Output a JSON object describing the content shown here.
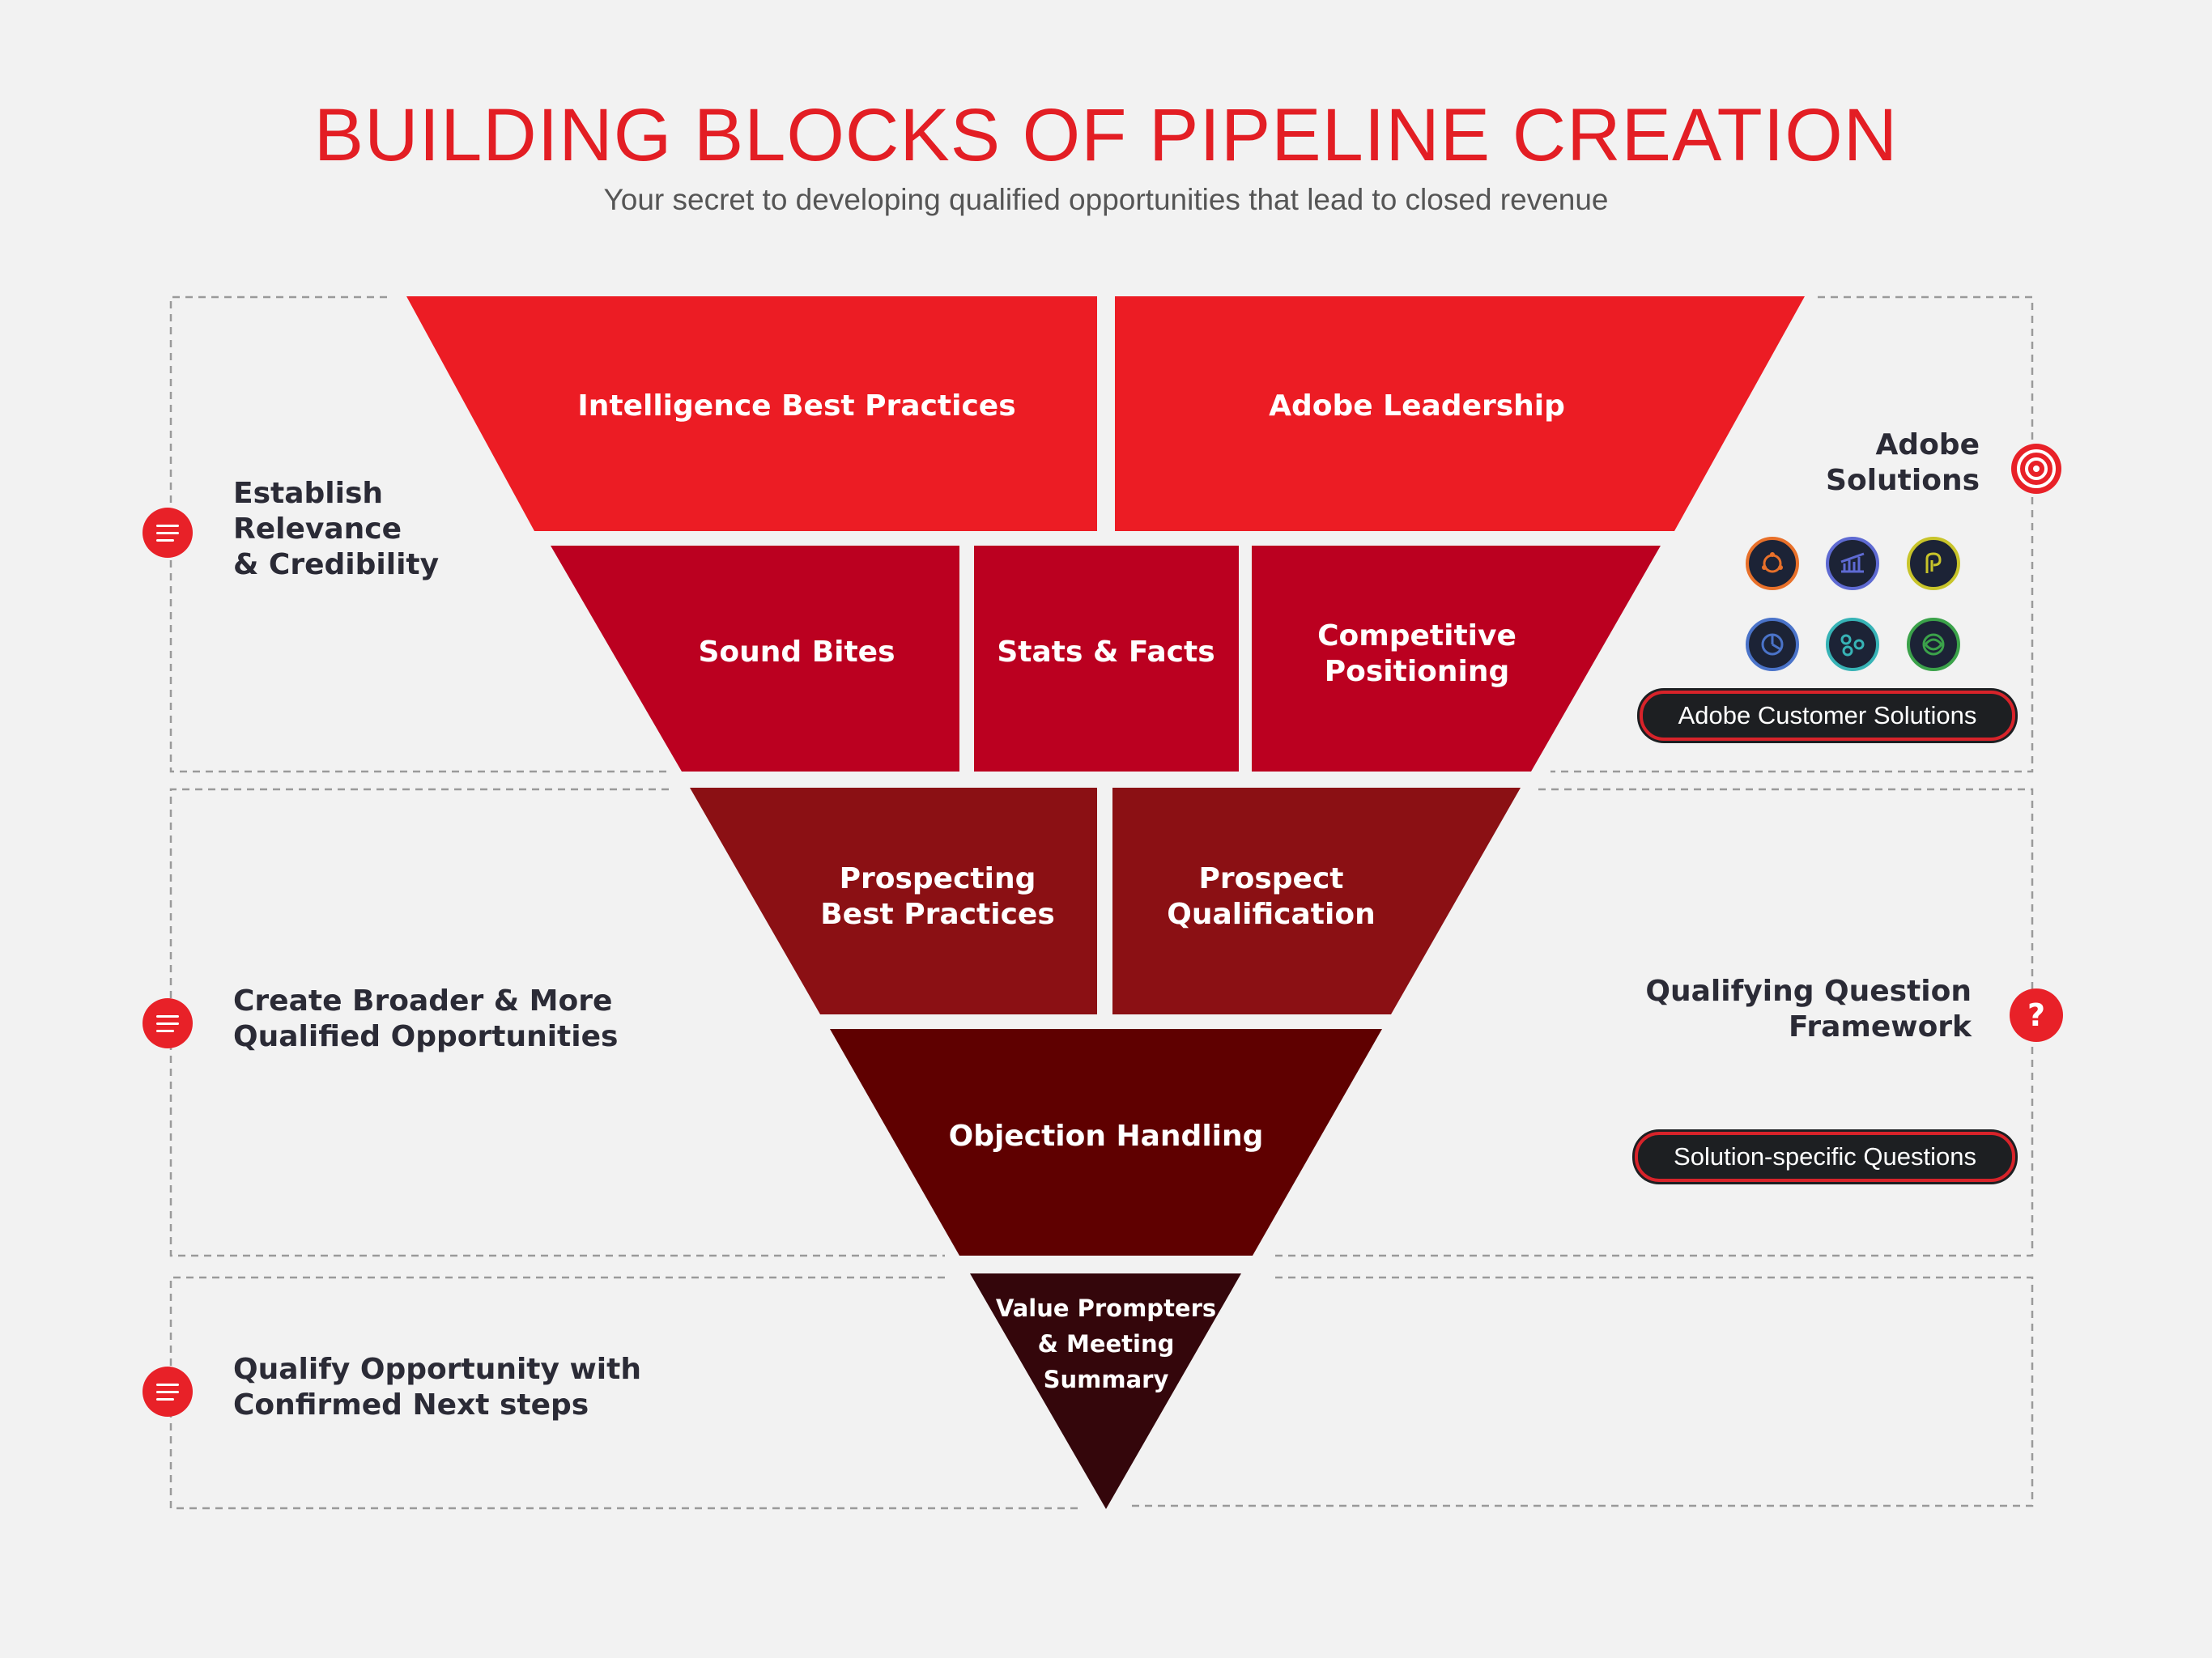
{
  "title": "BUILDING BLOCKS OF PIPELINE CREATION",
  "subtitle": "Your secret to developing qualified opportunities that lead to closed revenue",
  "blocks": {
    "intelligence": "Intelligence Best Practices",
    "leadership": "Adobe Leadership",
    "sound_bites": "Sound Bites",
    "stats_facts": "Stats & Facts",
    "competitive": [
      "Competitive",
      "Positioning"
    ],
    "prospecting": [
      "Prospecting",
      "Best Practices"
    ],
    "prospect_qual": [
      "Prospect",
      "Qualification"
    ],
    "objection": "Objection Handling",
    "value": [
      "Value Prompters",
      "& Meeting",
      "Summary"
    ]
  },
  "left_sections": [
    {
      "lines": [
        "Establish",
        "Relevance",
        "& Credibility"
      ]
    },
    {
      "lines": [
        "Create Broader & More",
        "Qualified Opportunities"
      ]
    },
    {
      "lines": [
        "Qualify Opportunity with",
        "Confirmed Next steps"
      ]
    }
  ],
  "right_sections": {
    "solutions_label": [
      "Adobe",
      "Solutions"
    ],
    "solutions_button": "Adobe Customer Solutions",
    "question_label": [
      "Qualifying Question",
      "Framework"
    ],
    "question_button": "Solution-specific Questions",
    "question_icon_glyph": "?"
  },
  "solution_icons": [
    {
      "name": "experience-manager-icon",
      "color": "#e8702a"
    },
    {
      "name": "analytics-icon",
      "color": "#5e6ad2"
    },
    {
      "name": "primetime-icon",
      "color": "#c8c42a"
    },
    {
      "name": "audience-manager-icon",
      "color": "#4a73c9"
    },
    {
      "name": "campaign-icon",
      "color": "#37b3b6"
    },
    {
      "name": "target-icon",
      "color": "#3ba24a"
    }
  ],
  "colors": {
    "accent": "#e31e24",
    "tier1": "#ec1c24",
    "tier2": "#bb0020",
    "tier3": "#8b1014",
    "tier4": "#5f0000",
    "tier5": "#34060b"
  }
}
